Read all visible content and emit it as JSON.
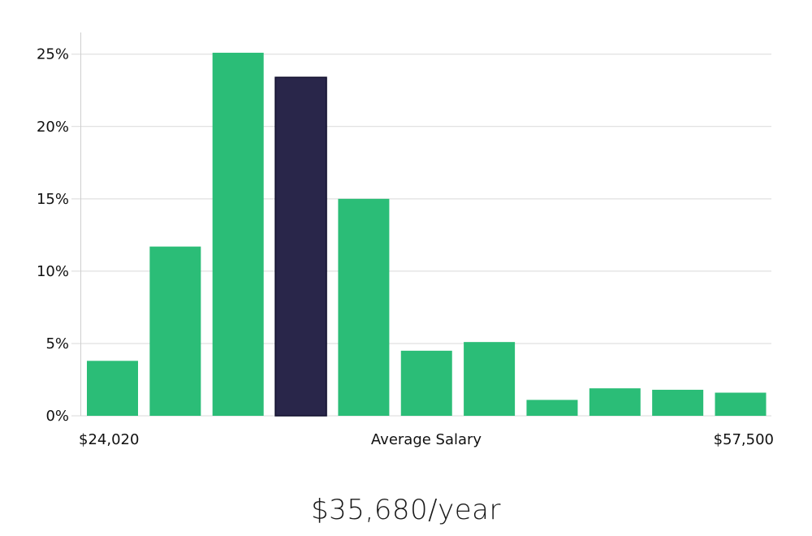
{
  "chart_data": {
    "type": "bar",
    "values": [
      3.8,
      11.7,
      25.1,
      23.4,
      15.0,
      4.5,
      5.1,
      1.1,
      1.9,
      1.8,
      1.6
    ],
    "highlight_index": 3,
    "ylim": [
      0,
      26.5
    ],
    "yticks": [
      0,
      5,
      10,
      15,
      20,
      25
    ],
    "ytick_labels": [
      "0%",
      "5%",
      "10%",
      "15%",
      "20%",
      "25%"
    ],
    "xlabel_left": "$24,020",
    "xlabel_center": "Average Salary",
    "xlabel_right": "$57,500",
    "grid": true,
    "colors": {
      "bar": "#2bbd77",
      "highlight": "#29264a",
      "grid": "#d9d9d9"
    }
  },
  "headline": "$35,680/year"
}
